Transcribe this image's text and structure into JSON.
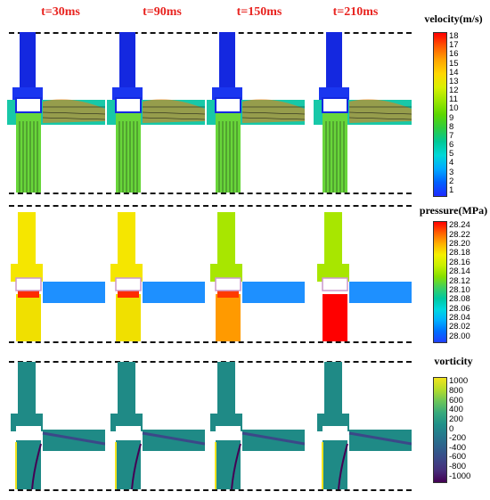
{
  "time_labels": [
    "t=30ms",
    "t=90ms",
    "t=150ms",
    "t=210ms"
  ],
  "colors": {
    "time_label": "#e8231f",
    "dash": "#111111"
  },
  "panels": [
    {
      "name": "velocity",
      "legend_title": "velocity(m/s)",
      "ticks": [
        "18",
        "17",
        "16",
        "15",
        "14",
        "13",
        "12",
        "11",
        "10",
        "9",
        "8",
        "7",
        "6",
        "5",
        "4",
        "3",
        "2",
        "1"
      ],
      "gradient": [
        "#ff0000",
        "#ff5a00",
        "#ffa500",
        "#ffd700",
        "#d9f000",
        "#9be600",
        "#5cd700",
        "#2ecc40",
        "#00c896",
        "#00d8d8",
        "#00aaff",
        "#0060ff",
        "#1f2bff"
      ]
    },
    {
      "name": "pressure",
      "legend_title": "pressure(MPa)",
      "ticks": [
        "28.24",
        "28.22",
        "28.20",
        "28.18",
        "28.16",
        "28.14",
        "28.12",
        "28.10",
        "28.08",
        "28.06",
        "28.04",
        "28.02",
        "28.00"
      ],
      "gradient": [
        "#ff0000",
        "#ff6000",
        "#ffb000",
        "#f5f000",
        "#c8f000",
        "#86e000",
        "#3ed060",
        "#00c8a0",
        "#00d8e0",
        "#00b0ff",
        "#0070ff",
        "#2040ff"
      ]
    },
    {
      "name": "vorticity",
      "legend_title": "vorticity",
      "ticks": [
        "1000",
        "800",
        "600",
        "400",
        "200",
        "0",
        "-200",
        "-400",
        "-600",
        "-800",
        "-1000"
      ],
      "gradient": [
        "#f2e41c",
        "#b5dc2a",
        "#6cc559",
        "#38aa7c",
        "#1f9088",
        "#26788d",
        "#2f608c",
        "#3b4888",
        "#462e7a",
        "#440154"
      ]
    }
  ]
}
